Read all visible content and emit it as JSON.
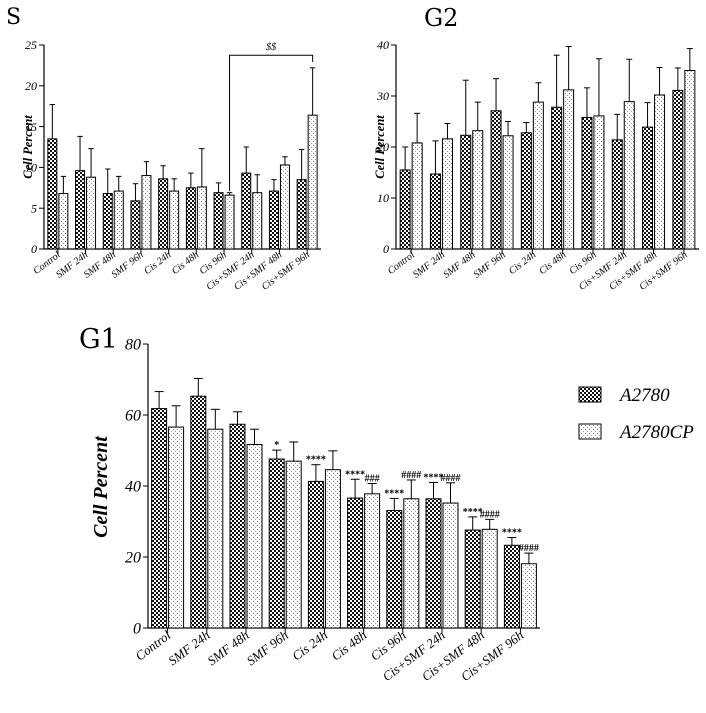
{
  "chart_data": [
    {
      "id": "S",
      "type": "bar",
      "title": "S",
      "ylabel": "Cell Percent",
      "xlabel": "",
      "ylim": [
        0,
        25
      ],
      "yticks": [
        0,
        5,
        10,
        15,
        20,
        25
      ],
      "categories": [
        "Control",
        "SMF 24h",
        "SMF 48h",
        "SMF 96h",
        "Cis 24h",
        "Cis 48h",
        "Cis 96h",
        "Cis+SMF 24h",
        "Cis+SMF 48h",
        "Cis+SMF 96h"
      ],
      "series": [
        {
          "name": "A2780",
          "values": [
            13.5,
            9.6,
            6.8,
            5.9,
            8.6,
            7.5,
            6.9,
            9.3,
            7.1,
            8.5
          ],
          "errors": [
            4.2,
            4.2,
            3.0,
            2.1,
            1.6,
            1.8,
            1.2,
            3.2,
            1.4,
            3.7
          ]
        },
        {
          "name": "A2780CP",
          "values": [
            6.8,
            8.8,
            7.1,
            9.0,
            7.1,
            7.6,
            6.6,
            6.9,
            10.3,
            16.4
          ],
          "errors": [
            2.1,
            3.5,
            1.8,
            1.7,
            1.5,
            4.7,
            0.3,
            2.2,
            1.0,
            5.8
          ]
        }
      ],
      "annotations": [
        {
          "text": "$$",
          "between": [
            "Cis 96h",
            "Cis+SMF 96h"
          ]
        }
      ]
    },
    {
      "id": "G2",
      "type": "bar",
      "title": "G2",
      "ylabel": "Cell Percent",
      "xlabel": "",
      "ylim": [
        0,
        40
      ],
      "yticks": [
        0,
        10,
        20,
        30,
        40
      ],
      "categories": [
        "Control",
        "SMF 24h",
        "SMF 48h",
        "SMF 96h",
        "Cis 24h",
        "Cis 48h",
        "Cis 96h",
        "Cis+SMF 24h",
        "Cis+SMF 48h",
        "Cis+SMF 96h"
      ],
      "series": [
        {
          "name": "A2780",
          "values": [
            15.5,
            14.7,
            22.3,
            27.1,
            22.8,
            27.8,
            25.8,
            21.4,
            23.9,
            31.1
          ],
          "errors": [
            4.5,
            6.5,
            10.8,
            6.3,
            2.0,
            10.2,
            5.8,
            5.0,
            4.8,
            4.4
          ]
        },
        {
          "name": "A2780CP",
          "values": [
            20.8,
            21.6,
            23.2,
            22.2,
            28.8,
            31.2,
            26.1,
            28.9,
            30.2,
            35.0
          ],
          "errors": [
            5.8,
            3.0,
            5.6,
            2.8,
            3.8,
            8.5,
            11.2,
            8.3,
            5.4,
            4.3
          ]
        }
      ],
      "annotations": []
    },
    {
      "id": "G1",
      "type": "bar",
      "title": "G1",
      "ylabel": "Cell Percent",
      "xlabel": "",
      "ylim": [
        0,
        80
      ],
      "yticks": [
        0,
        20,
        40,
        60,
        80
      ],
      "categories": [
        "Control",
        "SMF 24h",
        "SMF 48h",
        "SMF 96h",
        "Cis 24h",
        "Cis 48h",
        "Cis 96h",
        "Cis+SMF 24h",
        "Cis+SMF 48h",
        "Cis+SMF 96h"
      ],
      "series": [
        {
          "name": "A2780",
          "values": [
            61.8,
            65.3,
            57.4,
            47.6,
            41.3,
            36.6,
            33.1,
            36.4,
            27.6,
            23.3
          ],
          "errors": [
            4.8,
            5.0,
            3.5,
            2.5,
            4.7,
            5.3,
            3.4,
            4.6,
            3.7,
            2.2
          ],
          "significance": [
            "",
            "",
            "",
            "*",
            "****",
            "****",
            "****",
            "****",
            "****",
            "****"
          ]
        },
        {
          "name": "A2780CP",
          "values": [
            56.6,
            56.0,
            51.7,
            47.0,
            44.6,
            37.8,
            36.4,
            35.2,
            27.8,
            18.1
          ],
          "errors": [
            6.0,
            5.6,
            4.3,
            5.4,
            5.3,
            2.9,
            5.3,
            5.7,
            2.8,
            3.0
          ],
          "significance": [
            "",
            "",
            "",
            "",
            "",
            "###",
            "####",
            "####",
            "####",
            "####"
          ]
        }
      ],
      "annotations": []
    }
  ],
  "legend": {
    "entries": [
      {
        "label": "A2780",
        "pattern": "checker"
      },
      {
        "label": "A2780CP",
        "pattern": "dots"
      }
    ],
    "placement": "right"
  }
}
